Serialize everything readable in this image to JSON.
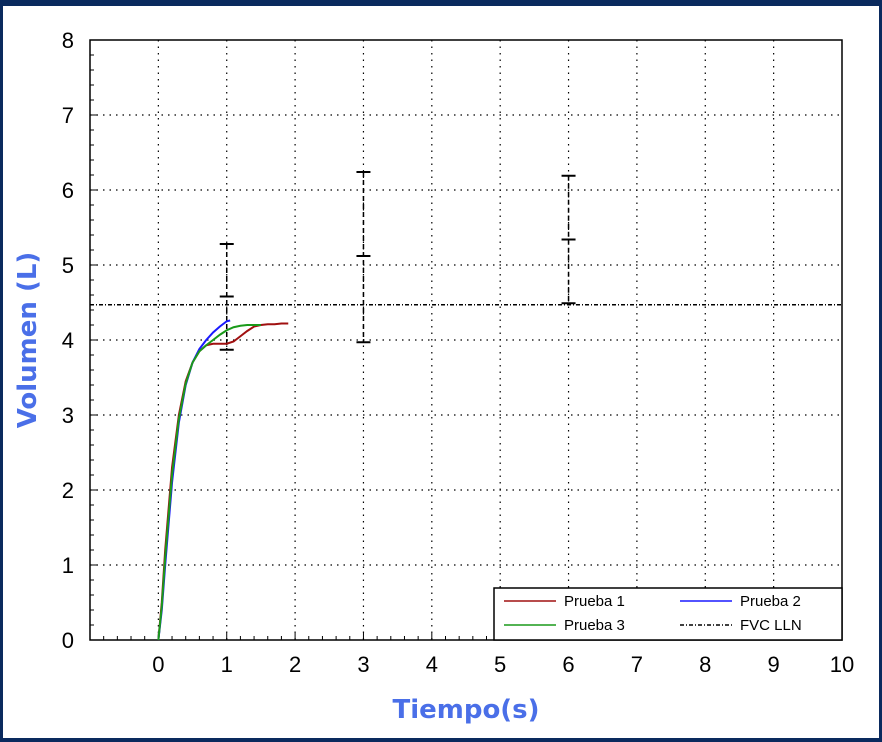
{
  "chart_data": {
    "type": "line",
    "title": "",
    "xlabel": "Tiempo(s)",
    "ylabel": "Volumen (L)",
    "xlim": [
      -1,
      10
    ],
    "ylim": [
      0,
      8
    ],
    "x_ticks": [
      "0",
      "1",
      "2",
      "3",
      "4",
      "5",
      "6",
      "7",
      "8",
      "9",
      "10"
    ],
    "y_ticks": [
      "0",
      "1",
      "2",
      "3",
      "4",
      "5",
      "6",
      "7",
      "8"
    ],
    "grid": true,
    "legend_position": "bottom-right",
    "series": [
      {
        "name": "Prueba 1",
        "color": "#a01010",
        "x": [
          0,
          0.05,
          0.1,
          0.2,
          0.3,
          0.4,
          0.5,
          0.6,
          0.7,
          0.8,
          0.9,
          1.0,
          1.1,
          1.2,
          1.3,
          1.4,
          1.5,
          1.6,
          1.7,
          1.8,
          1.9
        ],
        "y": [
          0,
          0.5,
          1.2,
          2.3,
          3.0,
          3.45,
          3.7,
          3.85,
          3.93,
          3.95,
          3.95,
          3.95,
          3.98,
          4.05,
          4.12,
          4.18,
          4.2,
          4.21,
          4.21,
          4.22,
          4.22
        ]
      },
      {
        "name": "Prueba 2",
        "color": "#1a1aff",
        "x": [
          0,
          0.05,
          0.1,
          0.2,
          0.3,
          0.4,
          0.5,
          0.6,
          0.7,
          0.8,
          0.9,
          1.0,
          1.05
        ],
        "y": [
          0,
          0.4,
          1.0,
          2.1,
          2.9,
          3.4,
          3.7,
          3.88,
          4.0,
          4.1,
          4.18,
          4.25,
          4.26
        ]
      },
      {
        "name": "Prueba 3",
        "color": "#1a9a1a",
        "x": [
          0,
          0.05,
          0.1,
          0.2,
          0.3,
          0.4,
          0.5,
          0.6,
          0.7,
          0.8,
          0.9,
          1.0,
          1.1,
          1.2,
          1.3,
          1.4,
          1.5
        ],
        "y": [
          0,
          0.45,
          1.1,
          2.2,
          2.95,
          3.42,
          3.7,
          3.85,
          3.93,
          4.0,
          4.07,
          4.13,
          4.17,
          4.19,
          4.2,
          4.2,
          4.2
        ]
      },
      {
        "name": "FVC LLN",
        "color": "#000000",
        "dashed": true,
        "x": [
          -1,
          10
        ],
        "y": [
          4.47,
          4.47
        ]
      }
    ],
    "error_bars": [
      {
        "x": 1,
        "y": 4.58,
        "low": 3.87,
        "high": 5.28
      },
      {
        "x": 3,
        "y": 5.12,
        "low": 3.97,
        "high": 6.24
      },
      {
        "x": 6,
        "y": 5.34,
        "low": 4.49,
        "high": 6.19
      }
    ]
  }
}
